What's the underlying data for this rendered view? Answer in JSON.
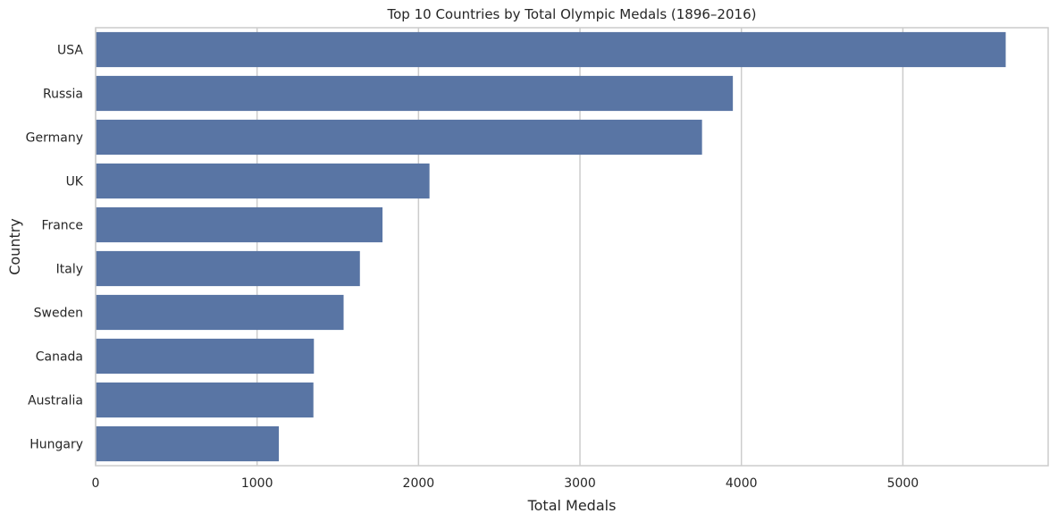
{
  "chart_data": {
    "type": "bar",
    "orientation": "horizontal",
    "title": "Top 10 Countries by Total Olympic Medals (1896–2016)",
    "xlabel": "Total Medals",
    "ylabel": "Country",
    "categories": [
      "USA",
      "Russia",
      "Germany",
      "UK",
      "France",
      "Italy",
      "Sweden",
      "Canada",
      "Australia",
      "Hungary"
    ],
    "values": [
      5637,
      3947,
      3756,
      2068,
      1777,
      1637,
      1536,
      1352,
      1349,
      1135
    ],
    "xlim": [
      0,
      5900
    ],
    "xticks": [
      "0",
      "1000",
      "2000",
      "3000",
      "4000",
      "5000"
    ],
    "grid": "x",
    "bar_color": "#5975a4",
    "grid_color": "#cccccc",
    "frame_color": "#cccccc"
  }
}
